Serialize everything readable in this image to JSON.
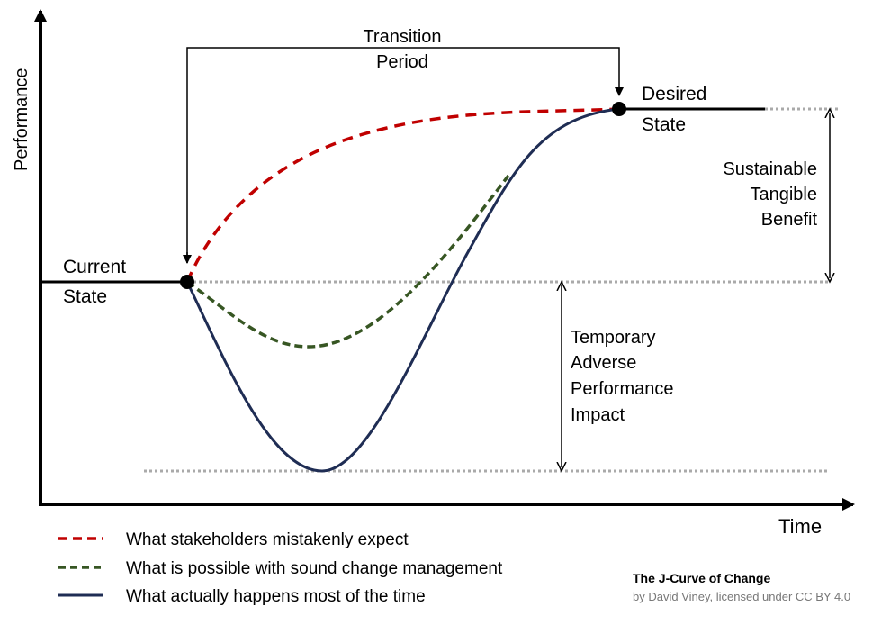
{
  "axes": {
    "y_label": "Performance",
    "x_label": "Time"
  },
  "labels": {
    "transition": [
      "Transition",
      "Period"
    ],
    "current_state": [
      "Current",
      "State"
    ],
    "desired_state": [
      "Desired",
      "State"
    ],
    "benefit": [
      "Sustainable",
      "Tangible",
      "Benefit"
    ],
    "impact": [
      "Temporary",
      "Adverse",
      "Performance",
      "Impact"
    ]
  },
  "legend": [
    {
      "label": "What stakeholders mistakenly expect",
      "color": "#c00000",
      "style": "dashed"
    },
    {
      "label": "What is possible with sound change management",
      "color": "#375623",
      "style": "dashed"
    },
    {
      "label": "What actually happens most of the time",
      "color": "#1f2d54",
      "style": "solid"
    }
  ],
  "caption": {
    "title": "The J-Curve of Change",
    "credit": "by David Viney, licensed under CC BY 4.0"
  }
}
